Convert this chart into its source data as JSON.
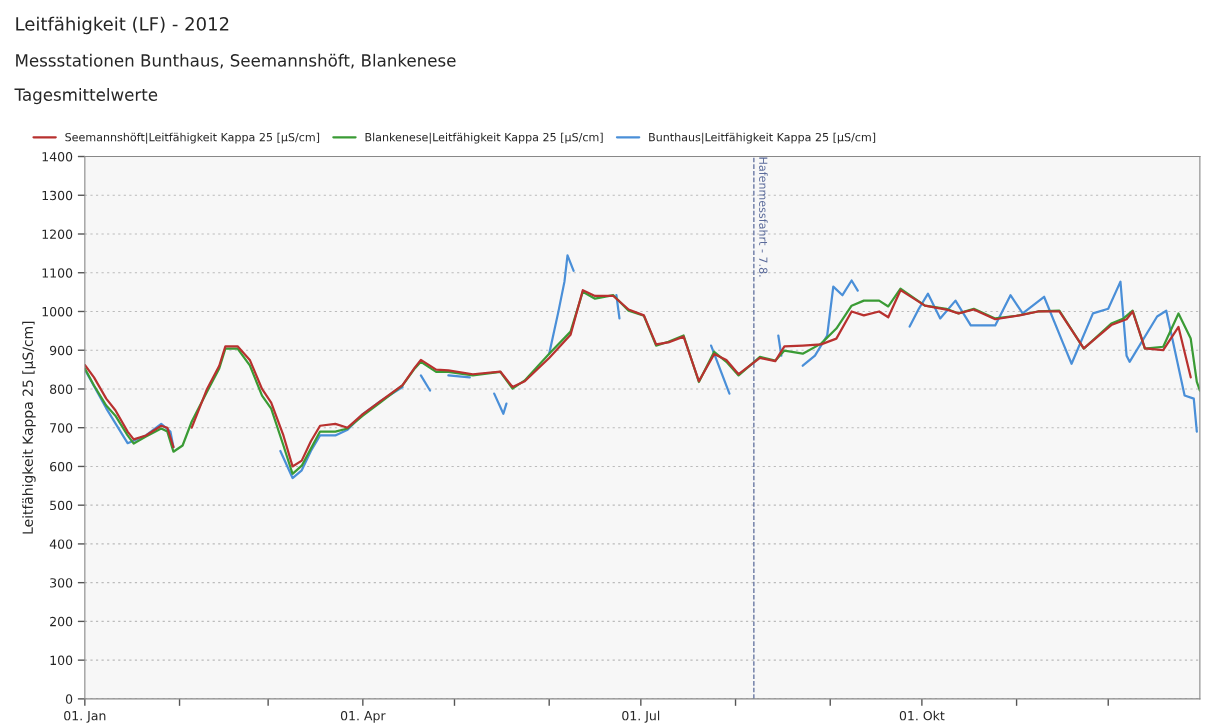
{
  "chart_data": {
    "type": "line",
    "title": "Leitfähigkeit (LF) - 2012",
    "subtitle": "Messstationen Bunthaus, Seemannshöft, Blankenese",
    "annotations": [
      "Tagesmittelwerte"
    ],
    "ylabel": "Leitfähigkeit Kappa 25 [µS/cm]",
    "legend": "top left",
    "grid": "y",
    "line_style": "solid",
    "xlim": [
      "2012-01-01",
      "2012-12-31"
    ],
    "xticks": [
      {
        "value": "2012-01-01",
        "label": "01. Jan"
      },
      {
        "value": "2012-02-01",
        "label": null
      },
      {
        "value": "2012-03-01",
        "label": null
      },
      {
        "value": "2012-04-01",
        "label": "01. Apr"
      },
      {
        "value": "2012-05-01",
        "label": null
      },
      {
        "value": "2012-06-01",
        "label": null
      },
      {
        "value": "2012-07-01",
        "label": "01. Jul"
      },
      {
        "value": "2012-08-01",
        "label": null
      },
      {
        "value": "2012-09-01",
        "label": null
      },
      {
        "value": "2012-10-01",
        "label": "01. Okt"
      },
      {
        "value": "2012-11-01",
        "label": null
      },
      {
        "value": "2012-12-01",
        "label": null
      }
    ],
    "ylim": [
      0,
      1400
    ],
    "yticks": [
      0,
      100,
      200,
      300,
      400,
      500,
      600,
      700,
      800,
      900,
      1000,
      1100,
      1200,
      1300,
      1400
    ],
    "ref_lines": [
      {
        "axis": "x",
        "value": "2012-08-07",
        "label": "Hafenmessfahrt - 7.8.",
        "color": "#5a6a9a",
        "line_style": "dashed"
      }
    ],
    "series": [
      {
        "name": "Seemannshöft|Leitfähigkeit Kappa 25 [µS/cm]",
        "color": "#b8312f",
        "x": [
          "2012-01-01",
          "2012-01-04",
          "2012-01-08",
          "2012-01-11",
          "2012-01-15",
          "2012-01-17",
          "2012-01-21",
          "2012-01-26",
          "2012-01-28",
          "2012-01-30",
          "2012-02-02",
          "2012-02-05",
          "2012-02-10",
          "2012-02-14",
          "2012-02-16",
          "2012-02-20",
          "2012-02-24",
          "2012-02-28",
          "2012-03-02",
          "2012-03-06",
          "2012-03-09",
          "2012-03-12",
          "2012-03-15",
          "2012-03-18",
          "2012-03-23",
          "2012-03-27",
          "2012-04-01",
          "2012-04-07",
          "2012-04-14",
          "2012-04-18",
          "2012-04-20",
          "2012-04-25",
          "2012-04-29",
          "2012-05-07",
          "2012-05-16",
          "2012-05-20",
          "2012-05-24",
          "2012-06-01",
          "2012-06-08",
          "2012-06-12",
          "2012-06-16",
          "2012-06-22",
          "2012-06-27",
          "2012-07-02",
          "2012-07-06",
          "2012-07-10",
          "2012-07-15",
          "2012-07-20",
          "2012-07-25",
          "2012-07-29",
          "2012-08-02",
          "2012-08-09",
          "2012-08-14",
          "2012-08-17",
          "2012-08-23",
          "2012-08-29",
          "2012-09-03",
          "2012-09-08",
          "2012-09-12",
          "2012-09-17",
          "2012-09-20",
          "2012-09-24",
          "2012-10-02",
          "2012-10-09",
          "2012-10-13",
          "2012-10-18",
          "2012-10-25",
          "2012-11-02",
          "2012-11-08",
          "2012-11-15",
          "2012-11-23",
          "2012-12-02",
          "2012-12-07",
          "2012-12-09",
          "2012-12-13",
          "2012-12-19",
          "2012-12-24",
          "2012-12-28"
        ],
        "values": [
          862,
          830,
          775,
          745,
          690,
          670,
          680,
          705,
          700,
          650,
          null,
          700,
          800,
          860,
          910,
          910,
          875,
          800,
          765,
          680,
          600,
          615,
          665,
          705,
          710,
          700,
          735,
          770,
          810,
          855,
          875,
          850,
          848,
          838,
          845,
          805,
          820,
          880,
          940,
          1055,
          1040,
          1040,
          1005,
          990,
          915,
          920,
          935,
          820,
          890,
          875,
          838,
          880,
          872,
          910,
          912,
          915,
          930,
          1000,
          990,
          1000,
          985,
          1055,
          1015,
          1005,
          995,
          1005,
          980,
          990,
          1000,
          1000,
          905,
          965,
          980,
          1000,
          905,
          900,
          960,
          830
        ]
      },
      {
        "name": "Blankenese|Leitfähigkeit Kappa 25 [µS/cm]",
        "color": "#3a9b35",
        "x": [
          "2012-01-01",
          "2012-01-04",
          "2012-01-08",
          "2012-01-11",
          "2012-01-15",
          "2012-01-17",
          "2012-01-21",
          "2012-01-26",
          "2012-01-28",
          "2012-01-30",
          "2012-02-02",
          "2012-02-05",
          "2012-02-10",
          "2012-02-14",
          "2012-02-16",
          "2012-02-20",
          "2012-02-24",
          "2012-02-28",
          "2012-03-02",
          "2012-03-06",
          "2012-03-09",
          "2012-03-12",
          "2012-03-15",
          "2012-03-18",
          "2012-03-23",
          "2012-03-27",
          "2012-04-01",
          "2012-04-07",
          "2012-04-14",
          "2012-04-18",
          "2012-04-20",
          "2012-04-25",
          "2012-04-29",
          "2012-05-07",
          "2012-05-16",
          "2012-05-20",
          "2012-05-24",
          "2012-06-01",
          "2012-06-08",
          "2012-06-12",
          "2012-06-16",
          "2012-06-22",
          "2012-06-27",
          "2012-07-02",
          "2012-07-06",
          "2012-07-10",
          "2012-07-15",
          "2012-07-20",
          "2012-07-25",
          "2012-07-29",
          "2012-08-02",
          "2012-08-09",
          "2012-08-14",
          "2012-08-17",
          "2012-08-23",
          "2012-08-29",
          "2012-09-03",
          "2012-09-08",
          "2012-09-12",
          "2012-09-17",
          "2012-09-20",
          "2012-09-24",
          "2012-10-02",
          "2012-10-09",
          "2012-10-13",
          "2012-10-18",
          "2012-10-25",
          "2012-11-01",
          "2012-11-08",
          "2012-11-15",
          "2012-11-23",
          "2012-12-02",
          "2012-12-06",
          "2012-12-09",
          "2012-12-13",
          "2012-12-19",
          "2012-12-24",
          "2012-12-28",
          "2012-12-30",
          "2012-12-31"
        ],
        "values": [
          853,
          809,
          757,
          731,
          680,
          659,
          677,
          698,
          690,
          638,
          654,
          716,
          793,
          853,
          904,
          904,
          861,
          783,
          749,
          654,
          581,
          602,
          646,
          690,
          690,
          698,
          731,
          767,
          809,
          853,
          870,
          844,
          844,
          835,
          844,
          801,
          822,
          891,
          948,
          1051,
          1033,
          1042,
          1002,
          989,
          912,
          922,
          938,
          818,
          896,
          870,
          835,
          883,
          873,
          899,
          891,
          917,
          956,
          1015,
          1028,
          1028,
          1013,
          1059,
          1015,
          1007,
          995,
          1007,
          982,
          989,
          1000,
          1002,
          904,
          969,
          982,
          1002,
          904,
          909,
          995,
          930,
          818,
          796
        ]
      },
      {
        "name": "Bunthaus|Leitfähigkeit Kappa 25 [µS/cm]",
        "color": "#4a8fd8",
        "x": [
          "2012-01-01",
          "2012-01-08",
          "2012-01-15",
          "2012-01-21",
          "2012-01-26",
          "2012-01-29",
          "2012-01-30",
          "2012-02-15",
          "2012-03-05",
          "2012-03-09",
          "2012-03-12",
          "2012-03-15",
          "2012-03-18",
          "2012-03-23",
          "2012-03-27",
          "2012-04-01",
          "2012-04-07",
          "2012-04-14",
          "2012-04-17",
          "2012-04-20",
          "2012-04-23",
          "2012-04-26",
          "2012-04-29",
          "2012-05-06",
          "2012-05-10",
          "2012-05-14",
          "2012-05-17",
          "2012-05-18",
          "2012-05-25",
          "2012-06-01",
          "2012-06-04",
          "2012-06-06",
          "2012-06-07",
          "2012-06-09",
          "2012-06-15",
          "2012-06-23",
          "2012-06-24",
          "2012-07-10",
          "2012-07-24",
          "2012-07-30",
          "2012-08-08",
          "2012-08-15",
          "2012-08-16",
          "2012-08-20",
          "2012-08-23",
          "2012-08-27",
          "2012-08-31",
          "2012-09-02",
          "2012-09-05",
          "2012-09-08",
          "2012-09-10",
          "2012-09-20",
          "2012-09-27",
          "2012-09-30",
          "2012-10-03",
          "2012-10-07",
          "2012-10-12",
          "2012-10-17",
          "2012-10-25",
          "2012-10-30",
          "2012-11-03",
          "2012-11-10",
          "2012-11-16",
          "2012-11-19",
          "2012-11-26",
          "2012-12-01",
          "2012-12-05",
          "2012-12-07",
          "2012-12-08",
          "2012-12-17",
          "2012-12-20",
          "2012-12-26",
          "2012-12-29",
          "2012-12-30"
        ],
        "values": [
          850,
          750,
          660,
          680,
          710,
          690,
          650,
          null,
          640,
          570,
          590,
          640,
          680,
          680,
          695,
          735,
          770,
          805,
          null,
          835,
          796,
          null,
          835,
          830,
          null,
          788,
          736,
          762,
          null,
          891,
          999,
          1077,
          1145,
          1105,
          null,
          1042,
          982,
          null,
          912,
          788,
          null,
          938,
          886,
          null,
          860,
          886,
          938,
          1064,
          1042,
          1080,
          1054,
          null,
          961,
          1007,
          1046,
          982,
          1028,
          964,
          964,
          1042,
          995,
          1038,
          922,
          865,
          995,
          1007,
          1077,
          886,
          870,
          987,
          1002,
          783,
          775,
          690
        ]
      }
    ]
  }
}
